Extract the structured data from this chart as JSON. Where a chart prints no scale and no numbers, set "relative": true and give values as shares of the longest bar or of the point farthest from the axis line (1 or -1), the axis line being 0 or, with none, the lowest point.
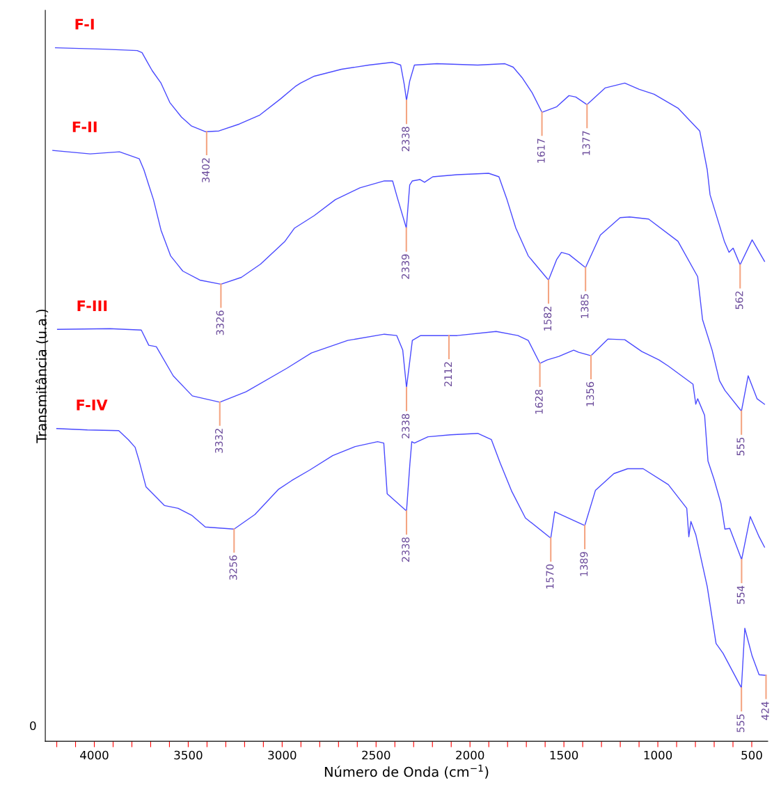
{
  "chart_data": {
    "type": "line",
    "relative": true,
    "xlabel": "Número de Onda (cm$^{−1}$)",
    "ylabel": "Transmitância (u.a.)",
    "xlim": [
      4261,
      415
    ],
    "xticks": [
      {
        "value": 4200,
        "label": null
      },
      {
        "value": 4100,
        "label": null
      },
      4000,
      {
        "value": 3900,
        "label": null
      },
      {
        "value": 3800,
        "label": null
      },
      {
        "value": 3700,
        "label": null
      },
      {
        "value": 3600,
        "label": null
      },
      3500,
      {
        "value": 3400,
        "label": null
      },
      {
        "value": 3300,
        "label": null
      },
      {
        "value": 3200,
        "label": null
      },
      {
        "value": 3100,
        "label": null
      },
      3000,
      {
        "value": 2900,
        "label": null
      },
      {
        "value": 2800,
        "label": null
      },
      {
        "value": 2700,
        "label": null
      },
      {
        "value": 2600,
        "label": null
      },
      2500,
      {
        "value": 2400,
        "label": null
      },
      {
        "value": 2300,
        "label": null
      },
      {
        "value": 2200,
        "label": null
      },
      {
        "value": 2100,
        "label": null
      },
      2000,
      {
        "value": 1900,
        "label": null
      },
      {
        "value": 1800,
        "label": null
      },
      {
        "value": 1700,
        "label": null
      },
      {
        "value": 1600,
        "label": null
      },
      1500,
      {
        "value": 1400,
        "label": null
      },
      {
        "value": 1300,
        "label": null
      },
      {
        "value": 1200,
        "label": null
      },
      {
        "value": 1100,
        "label": null
      },
      1000,
      {
        "value": 900,
        "label": null
      },
      {
        "value": 800,
        "label": null
      },
      {
        "value": 700,
        "label": null
      },
      {
        "value": 600,
        "label": null
      },
      500
    ],
    "grid": false,
    "legend": false,
    "series": [
      {
        "name": "F-I",
        "color": "#4a4aff",
        "x": [
          4207,
          3953,
          3772,
          3746,
          3717,
          3692,
          3645,
          3598,
          3536,
          3482,
          3409,
          3337,
          3228,
          3119,
          3010,
          2931,
          2902,
          2829,
          2684,
          2539,
          2412,
          2369,
          2350,
          2338,
          2321,
          2296,
          2176,
          1959,
          1814,
          1770,
          1723,
          1669,
          1617,
          1538,
          1473,
          1437,
          1377,
          1281,
          1176,
          1099,
          1020,
          893,
          777,
          737,
          722,
          646,
          621,
          599,
          562,
          498,
          432
        ],
        "values": [
          1.0,
          0.998,
          0.996,
          0.993,
          0.979,
          0.967,
          0.949,
          0.921,
          0.9,
          0.887,
          0.879,
          0.88,
          0.89,
          0.903,
          0.926,
          0.944,
          0.949,
          0.959,
          0.969,
          0.975,
          0.979,
          0.975,
          0.947,
          0.924,
          0.952,
          0.975,
          0.977,
          0.975,
          0.977,
          0.972,
          0.957,
          0.935,
          0.907,
          0.915,
          0.931,
          0.929,
          0.918,
          0.942,
          0.949,
          0.94,
          0.933,
          0.913,
          0.88,
          0.824,
          0.788,
          0.721,
          0.705,
          0.711,
          0.687,
          0.723,
          0.692
        ]
      },
      {
        "name": "F-II",
        "color": "#4a4aff",
        "x": [
          4221,
          4022,
          3866,
          3761,
          3736,
          3710,
          3685,
          3645,
          3594,
          3529,
          3438,
          3326,
          3217,
          3115,
          2985,
          2934,
          2829,
          2717,
          2586,
          2456,
          2412,
          2387,
          2339,
          2321,
          2307,
          2267,
          2242,
          2198,
          2068,
          1901,
          1846,
          1803,
          1756,
          1690,
          1582,
          1538,
          1513,
          1473,
          1385,
          1306,
          1201,
          1150,
          1049,
          893,
          788,
          762,
          711,
          672,
          643,
          555,
          519,
          472,
          432
        ],
        "values": [
          0.852,
          0.847,
          0.85,
          0.84,
          0.824,
          0.802,
          0.781,
          0.737,
          0.7,
          0.678,
          0.665,
          0.659,
          0.669,
          0.688,
          0.721,
          0.74,
          0.758,
          0.781,
          0.798,
          0.808,
          0.808,
          0.784,
          0.74,
          0.802,
          0.808,
          0.81,
          0.806,
          0.814,
          0.817,
          0.819,
          0.814,
          0.781,
          0.74,
          0.7,
          0.665,
          0.695,
          0.705,
          0.702,
          0.683,
          0.73,
          0.755,
          0.756,
          0.753,
          0.721,
          0.67,
          0.608,
          0.564,
          0.52,
          0.506,
          0.476,
          0.527,
          0.494,
          0.486
        ]
      },
      {
        "name": "F-III",
        "color": "#4a4aff",
        "x": [
          4196,
          3917,
          3750,
          3710,
          3670,
          3580,
          3478,
          3332,
          3192,
          2974,
          2844,
          2651,
          2456,
          2390,
          2358,
          2338,
          2307,
          2263,
          2068,
          1861,
          1745,
          1690,
          1628,
          1589,
          1527,
          1448,
          1422,
          1356,
          1266,
          1176,
          1085,
          994,
          944,
          813,
          798,
          788,
          751,
          733,
          701,
          664,
          643,
          617,
          554,
          508,
          461,
          432
        ],
        "values": [
          0.594,
          0.595,
          0.593,
          0.571,
          0.569,
          0.527,
          0.498,
          0.489,
          0.504,
          0.538,
          0.56,
          0.578,
          0.587,
          0.585,
          0.564,
          0.51,
          0.578,
          0.585,
          0.585,
          0.591,
          0.585,
          0.578,
          0.545,
          0.55,
          0.555,
          0.564,
          0.561,
          0.556,
          0.58,
          0.579,
          0.562,
          0.55,
          0.541,
          0.515,
          0.486,
          0.494,
          0.47,
          0.404,
          0.378,
          0.343,
          0.306,
          0.307,
          0.262,
          0.324,
          0.295,
          0.28
        ]
      },
      {
        "name": "F-IV",
        "color": "#4a4aff",
        "x": [
          4200,
          4037,
          3870,
          3819,
          3783,
          3761,
          3725,
          3627,
          3554,
          3482,
          3409,
          3256,
          3145,
          3021,
          2949,
          2854,
          2731,
          2611,
          2492,
          2459,
          2441,
          2338,
          2320,
          2310,
          2296,
          2224,
          2104,
          1959,
          1886,
          1839,
          1777,
          1705,
          1570,
          1549,
          1389,
          1332,
          1234,
          1161,
          1078,
          944,
          846,
          835,
          824,
          798,
          737,
          690,
          653,
          555,
          537,
          498,
          461,
          424
        ],
        "values": [
          0.451,
          0.449,
          0.448,
          0.435,
          0.424,
          0.404,
          0.367,
          0.34,
          0.336,
          0.326,
          0.309,
          0.306,
          0.327,
          0.363,
          0.376,
          0.391,
          0.412,
          0.425,
          0.432,
          0.43,
          0.357,
          0.332,
          0.4,
          0.432,
          0.43,
          0.439,
          0.442,
          0.444,
          0.435,
          0.401,
          0.36,
          0.322,
          0.293,
          0.331,
          0.311,
          0.362,
          0.386,
          0.393,
          0.393,
          0.37,
          0.336,
          0.295,
          0.317,
          0.298,
          0.223,
          0.141,
          0.127,
          0.077,
          0.163,
          0.123,
          0.096,
          0.095
        ]
      }
    ],
    "annotations": [
      "0",
      {
        "text": "3402",
        "x": 3402,
        "y": 0.879
      },
      {
        "text": "2338",
        "x": 2338,
        "y": 0.924
      },
      {
        "text": "1617",
        "x": 1617,
        "y": 0.907
      },
      {
        "text": "1377",
        "x": 1377,
        "y": 0.918
      },
      {
        "text": "562",
        "x": 562,
        "y": 0.687
      },
      {
        "text": "3326",
        "x": 3326,
        "y": 0.659
      },
      {
        "text": "2339",
        "x": 2339,
        "y": 0.74
      },
      {
        "text": "1582",
        "x": 1582,
        "y": 0.665
      },
      {
        "text": "1385",
        "x": 1385,
        "y": 0.683
      },
      {
        "text": "555",
        "x": 555,
        "y": 0.476
      },
      {
        "text": "3332",
        "x": 3332,
        "y": 0.489
      },
      {
        "text": "2338",
        "x": 2338,
        "y": 0.51
      },
      {
        "text": "2112",
        "x": 2112,
        "y": 0.585
      },
      {
        "text": "1628",
        "x": 1628,
        "y": 0.545
      },
      {
        "text": "1356",
        "x": 1356,
        "y": 0.556
      },
      {
        "text": "554",
        "x": 554,
        "y": 0.262
      },
      {
        "text": "3256",
        "x": 3256,
        "y": 0.306
      },
      {
        "text": "2338",
        "x": 2338,
        "y": 0.332
      },
      {
        "text": "1570",
        "x": 1570,
        "y": 0.293
      },
      {
        "text": "1389",
        "x": 1389,
        "y": 0.311
      },
      {
        "text": "555",
        "x": 555,
        "y": 0.077
      },
      {
        "text": "424",
        "x": 424,
        "y": 0.095
      }
    ]
  }
}
